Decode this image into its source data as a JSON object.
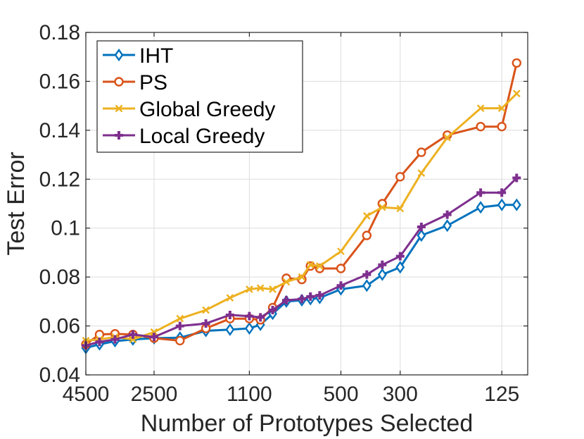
{
  "chart_data": {
    "type": "line",
    "xlabel": "Number of Prototypes Selected",
    "ylabel": "Test Error",
    "ylim": [
      0.04,
      0.18
    ],
    "yticks": [
      0.04,
      0.06,
      0.08,
      0.1,
      0.12,
      0.14,
      0.16,
      0.18
    ],
    "ytick_labels": [
      "0.04",
      "0.06",
      "0.08",
      "0.1",
      "0.12",
      "0.14",
      "0.16",
      "0.18"
    ],
    "xscale": "log, reversed",
    "xlim": [
      4500,
      100
    ],
    "xticks": [
      4500,
      2500,
      1100,
      500,
      300,
      125
    ],
    "xtick_labels": [
      "4500",
      "2500",
      "1100",
      "500",
      "300",
      "125"
    ],
    "grid": true,
    "legend_position": "top-left",
    "x": [
      4500,
      4000,
      3500,
      3000,
      2500,
      2000,
      1600,
      1300,
      1100,
      1000,
      900,
      800,
      700,
      650,
      600,
      500,
      400,
      350,
      300,
      250,
      200,
      150,
      125,
      110
    ],
    "series": [
      {
        "name": "IHT",
        "color": "#0072BD",
        "marker": "diamond",
        "values": [
          0.051,
          0.0525,
          0.0538,
          0.0545,
          0.055,
          0.0552,
          0.058,
          0.0585,
          0.059,
          0.0605,
          0.065,
          0.07,
          0.0705,
          0.071,
          0.0715,
          0.075,
          0.0765,
          0.081,
          0.084,
          0.097,
          0.101,
          0.1085,
          0.1095,
          0.1095
        ]
      },
      {
        "name": "PS",
        "color": "#D95319",
        "marker": "circle",
        "values": [
          0.0525,
          0.0565,
          0.0568,
          0.0565,
          0.055,
          0.054,
          0.059,
          0.063,
          0.063,
          0.0625,
          0.0675,
          0.0795,
          0.079,
          0.0845,
          0.0835,
          0.0835,
          0.097,
          0.11,
          0.121,
          0.131,
          0.138,
          0.1415,
          0.1415,
          0.1675
        ]
      },
      {
        "name": "Global Greedy",
        "color": "#EDB120",
        "marker": "x",
        "values": [
          0.054,
          0.0545,
          0.0555,
          0.0545,
          0.0575,
          0.063,
          0.0665,
          0.0715,
          0.075,
          0.0755,
          0.075,
          0.078,
          0.08,
          0.085,
          0.0845,
          0.0905,
          0.105,
          0.1085,
          0.108,
          0.1225,
          0.137,
          0.149,
          0.149,
          0.155
        ]
      },
      {
        "name": "Local Greedy",
        "color": "#7E2F8E",
        "marker": "plus",
        "values": [
          0.052,
          0.0535,
          0.0545,
          0.0565,
          0.0555,
          0.06,
          0.061,
          0.0645,
          0.064,
          0.0635,
          0.0665,
          0.0705,
          0.071,
          0.072,
          0.0725,
          0.0765,
          0.081,
          0.085,
          0.0885,
          0.1005,
          0.1055,
          0.1145,
          0.1145,
          0.1205
        ]
      }
    ]
  }
}
